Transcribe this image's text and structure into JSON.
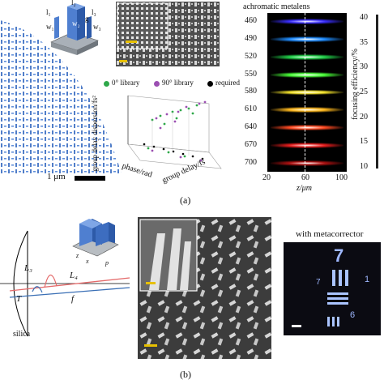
{
  "panel_a": {
    "label": "(a)",
    "scale_bar": "1 μm",
    "unit_cell": {
      "w1": "w₁",
      "w2": "w₂",
      "w3": "w₃",
      "l1": "l₁",
      "l2": "l₂",
      "l3": "l₃",
      "g": "g"
    },
    "legend": {
      "lib0": "0° library",
      "lib90": "90° library",
      "required": "required"
    },
    "legend_colors": {
      "lib0": "#2fa84a",
      "lib90": "#9b4fb2",
      "required": "#000000"
    },
    "plot3d": {
      "zlabel": "group delay dispersion/fs²",
      "xlabel": "phase/rad",
      "ylabel": "group delay/fs"
    },
    "metalens": {
      "title": "achromatic metalens",
      "wavelengths": [
        "460",
        "490",
        "520",
        "550",
        "580",
        "610",
        "640",
        "670",
        "700"
      ],
      "band_colors": [
        "#3b2fff",
        "#1f8cff",
        "#22d24a",
        "#49ff38",
        "#f2e12b",
        "#ffb81d",
        "#ff4a22",
        "#e81e1e",
        "#ad1111"
      ],
      "xlabel": "z/μm",
      "xticks": [
        "20",
        "60",
        "100"
      ],
      "colorbar_label": "focusing efficiency/%",
      "colorbar_ticks": [
        "40",
        "35",
        "30",
        "25",
        "20",
        "15",
        "10"
      ]
    }
  },
  "panel_b": {
    "label": "(b)",
    "L3": "L₃",
    "L4": "L₄",
    "T": "T",
    "f": "f",
    "silica": "silica",
    "inset_axes": {
      "z": "z",
      "x": "x",
      "p": "p"
    },
    "metacorrector_title": "with metacorrector",
    "chart_digits": {
      "big7": "7",
      "small7": "7",
      "six": "6",
      "one": "1"
    }
  }
}
